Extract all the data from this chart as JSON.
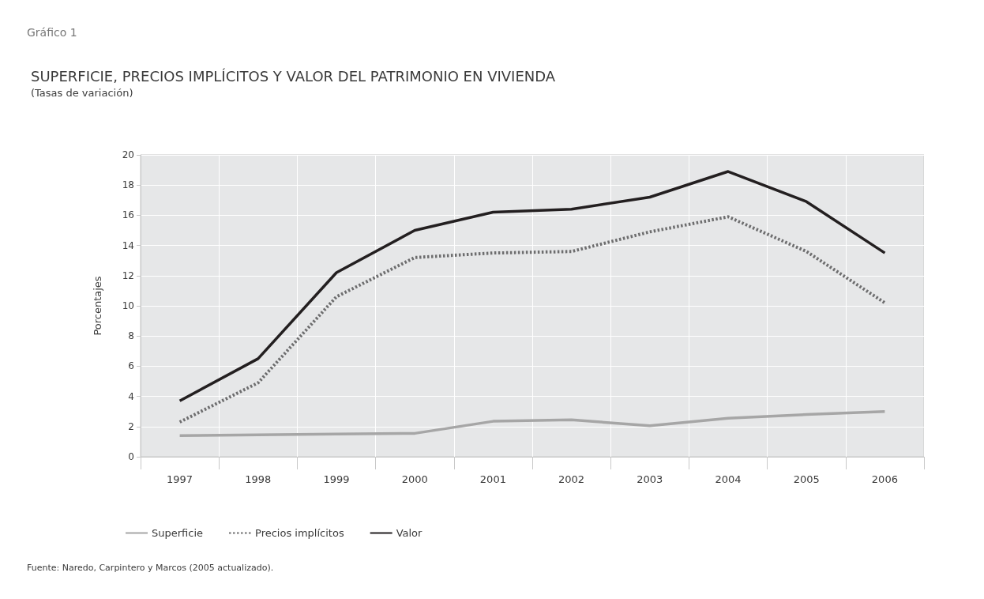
{
  "chart_data": {
    "type": "line",
    "title": "SUPERFICIE, PRECIOS IMPLÍCITOS Y VALOR DEL PATRIMONIO EN VIVIENDA",
    "subtitle": "(Tasas de variación)",
    "ylabel": "Porcentajes",
    "annotations": [
      "Gráfico 1",
      "Fuente: Naredo, Carpintero y Marcos (2005 actualizado)."
    ],
    "categories": [
      "1997",
      "1998",
      "1999",
      "2000",
      "2001",
      "2002",
      "2003",
      "2004",
      "2005",
      "2006"
    ],
    "series": [
      {
        "name": "Superficie",
        "color": "#a6a6a6",
        "line_style": "solid",
        "values": [
          1.4,
          1.45,
          1.5,
          1.55,
          2.35,
          2.45,
          2.05,
          2.55,
          2.8,
          3.0
        ]
      },
      {
        "name": "Precios implícitos",
        "color": "#6d6d6e",
        "line_style": "dotted",
        "values": [
          2.3,
          4.9,
          10.6,
          13.2,
          13.5,
          13.6,
          14.9,
          15.9,
          13.6,
          10.2
        ]
      },
      {
        "name": "Valor",
        "color": "#231f20",
        "line_style": "solid",
        "values": [
          3.7,
          6.5,
          12.2,
          15.0,
          16.2,
          16.4,
          17.2,
          18.9,
          16.9,
          13.5
        ]
      }
    ],
    "ylim": [
      0,
      20
    ],
    "yticks": [
      0,
      2,
      4,
      6,
      8,
      10,
      12,
      14,
      16,
      18,
      20
    ],
    "grid": true,
    "legend": "bottom left",
    "marker": "none"
  }
}
